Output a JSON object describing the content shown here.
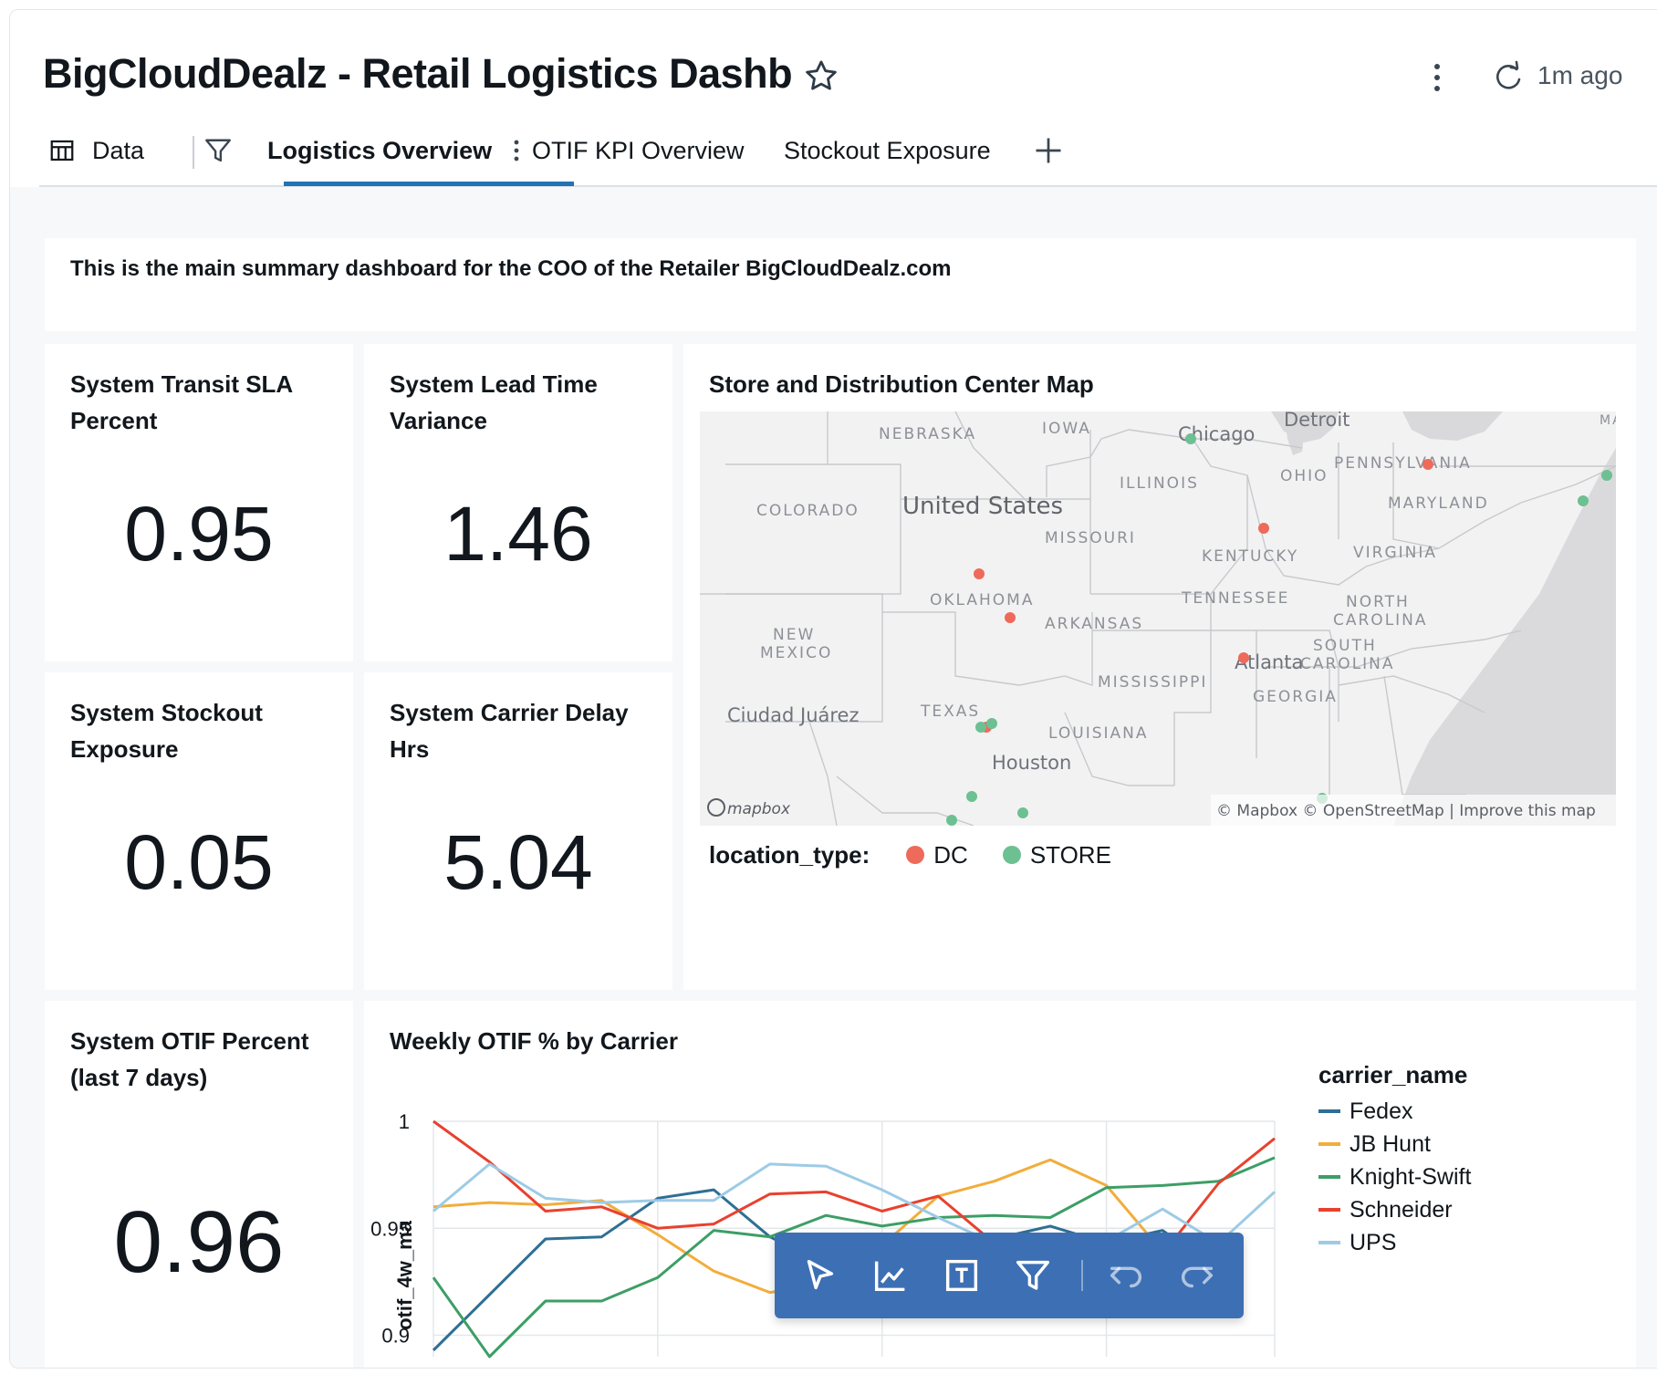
{
  "header": {
    "title": "BigCloudDealz - Retail Logistics Dashboard",
    "refresh_text": "1m ago"
  },
  "tabs": {
    "data_label": "Data",
    "items": [
      {
        "label": "Logistics Overview"
      },
      {
        "label": "OTIF KPI Overview"
      },
      {
        "label": "Stockout Exposure"
      }
    ]
  },
  "summary": {
    "text": "This is the main summary dashboard for the COO of the Retailer BigCloudDealz.com"
  },
  "kpis": {
    "transit_sla": {
      "title": "System Transit SLA Percent",
      "value": "0.95"
    },
    "lead_time": {
      "title": "System Lead Time Variance",
      "value": "1.46"
    },
    "stockout": {
      "title": "System Stockout Exposure",
      "value": "0.05"
    },
    "carrier_delay": {
      "title": "System Carrier Delay Hrs",
      "value": "5.04"
    },
    "otif": {
      "title": "System OTIF Percent (last 7 days)",
      "value": "0.96"
    }
  },
  "map": {
    "title": "Store and Distribution Center Map",
    "legend_label": "location_type:",
    "legend_items": [
      {
        "label": "DC",
        "color": "#ee6a5a"
      },
      {
        "label": "STORE",
        "color": "#6cc092"
      }
    ],
    "labels": {
      "nebraska": "NEBRASKA",
      "iowa": "IOWA",
      "chicago": "Chicago",
      "detroit": "Detroit",
      "ma": "MA",
      "pennsylvania": "PENNSYLVANIA",
      "ohio": "OHIO",
      "illinois": "ILLINOIS",
      "colorado": "COLORADO",
      "united_states": "United States",
      "maryland": "MARYLAND",
      "missouri": "MISSOURI",
      "kentucky": "KENTUCKY",
      "virginia": "VIRGINIA",
      "oklahoma": "OKLAHOMA",
      "tennessee": "TENNESSEE",
      "north": "NORTH",
      "carolina1": "CAROLINA",
      "new": "NEW",
      "mexico": "MEXICO",
      "arkansas": "ARKANSAS",
      "south": "SOUTH",
      "atlanta": "Atlanta",
      "carolina2": "CAROLINA",
      "mississippi": "MISSISSIPPI",
      "georgia": "GEORGIA",
      "ciudad_juarez": "Ciudad Juárez",
      "texas": "TEXAS",
      "louisiana": "LOUISIANA",
      "houston": "Houston",
      "mapbox_logo": "mapbox",
      "attribution": "© Mapbox  © OpenStreetMap  |  Improve this map"
    }
  },
  "chart": {
    "title": "Weekly OTIF % by Carrier"
  },
  "chart_data": {
    "type": "line",
    "title": "Weekly OTIF % by Carrier",
    "ylabel": "otif_4w_ma",
    "xlabel": "",
    "ylim": [
      0.89,
      1.0
    ],
    "y_ticks": [
      "1",
      "0.95",
      "0.9"
    ],
    "legend_title": "carrier_name",
    "legend_position": "right",
    "x": [
      0,
      1,
      2,
      3,
      4,
      5,
      6,
      7,
      8,
      9,
      10,
      11,
      12,
      13,
      14,
      15
    ],
    "series": [
      {
        "name": "Fedex",
        "color": "#2f6f94",
        "values": [
          0.893,
          0.919,
          0.945,
          0.946,
          0.964,
          0.968,
          0.946,
          0.933,
          0.929,
          0.939,
          0.945,
          0.951,
          0.943,
          0.949,
          0.93,
          null
        ]
      },
      {
        "name": "JB Hunt",
        "color": "#f2ad3c",
        "values": [
          0.96,
          0.962,
          0.961,
          0.963,
          0.947,
          0.93,
          0.92,
          0.924,
          0.942,
          0.965,
          0.972,
          0.982,
          0.97,
          0.939,
          0.93,
          null
        ]
      },
      {
        "name": "Knight-Swift",
        "color": "#3d9e66",
        "values": [
          0.927,
          0.89,
          0.916,
          0.916,
          0.927,
          0.949,
          0.946,
          0.956,
          0.951,
          0.955,
          0.956,
          0.955,
          0.969,
          0.97,
          0.972,
          0.983
        ]
      },
      {
        "name": "Schneider",
        "color": "#e8412e",
        "values": [
          1.0,
          0.981,
          0.958,
          0.96,
          0.95,
          0.952,
          0.966,
          0.967,
          0.958,
          0.965,
          0.943,
          0.932,
          0.947,
          0.938,
          0.971,
          0.992
        ]
      },
      {
        "name": "UPS",
        "color": "#9dcbe6",
        "values": [
          0.958,
          0.98,
          0.964,
          0.962,
          0.963,
          0.963,
          0.98,
          0.979,
          0.968,
          0.955,
          0.943,
          0.94,
          0.944,
          0.959,
          0.943,
          0.967
        ]
      }
    ]
  }
}
